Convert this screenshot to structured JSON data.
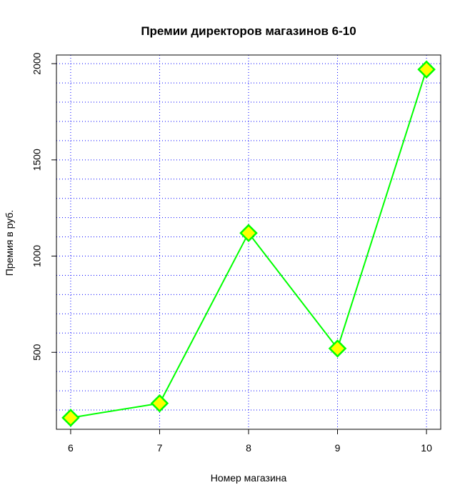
{
  "chart_data": {
    "type": "line",
    "title": "Премии директоров магазинов 6-10",
    "xlabel": "Номер магазина",
    "ylabel": "Премия в руб.",
    "x": [
      6,
      7,
      8,
      9,
      10
    ],
    "x_ticks": [
      "6",
      "7",
      "8",
      "9",
      "10"
    ],
    "y_ticks": [
      "500",
      "1000",
      "1500",
      "2000"
    ],
    "y_tick_values": [
      500,
      1000,
      1500,
      2000
    ],
    "values": [
      160,
      235,
      1120,
      520,
      1970
    ],
    "xlim": [
      5.84,
      10.16
    ],
    "ylim": [
      100,
      2045
    ],
    "grid": true,
    "grid_style": "dotted",
    "grid_y_values": [
      100,
      200,
      300,
      400,
      500,
      600,
      700,
      800,
      900,
      1000,
      1100,
      1200,
      1300,
      1400,
      1500,
      1600,
      1700,
      1800,
      1900,
      2000
    ],
    "colors": {
      "line": "#00ff00",
      "marker_fill": "#ffff00",
      "marker_edge": "#00ff00",
      "grid": "#0000ff",
      "axis": "#000000"
    },
    "marker": "diamond"
  }
}
